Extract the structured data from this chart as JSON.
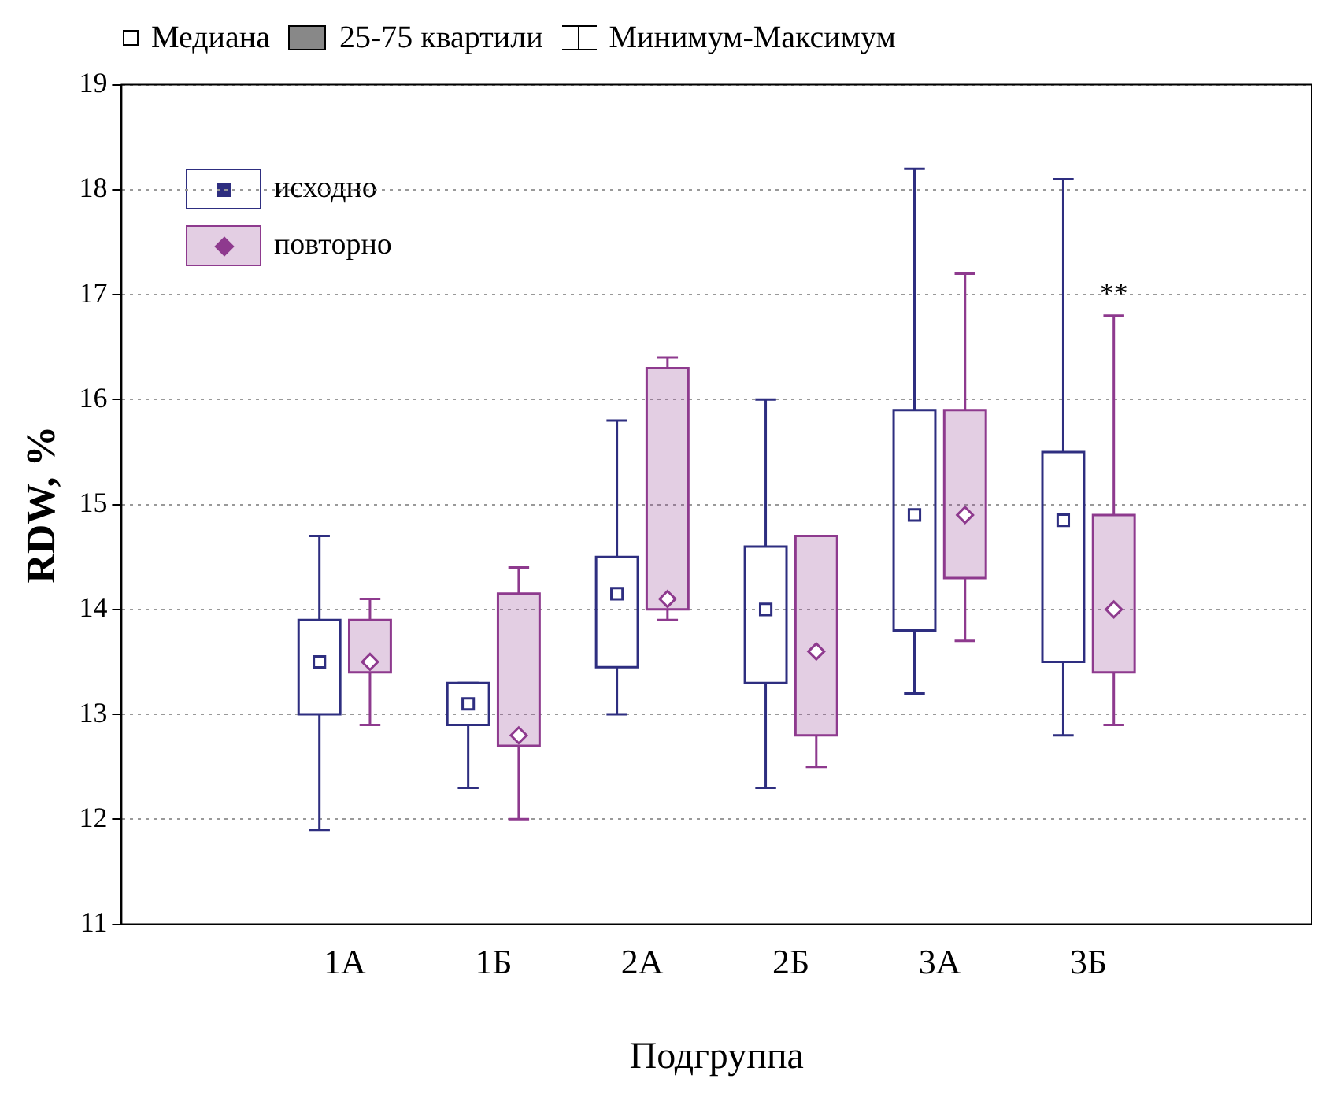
{
  "chart_data": {
    "type": "box",
    "xlabel": "Подгруппа",
    "ylabel": "RDW, %",
    "categories": [
      "1А",
      "1Б",
      "2А",
      "2Б",
      "3А",
      "3Б"
    ],
    "ylim": [
      11,
      19
    ],
    "yticks": [
      11,
      12,
      13,
      14,
      15,
      16,
      17,
      18,
      19
    ],
    "grid": "y",
    "legend": "top left",
    "annotations": [
      "Медиана",
      "25-75 квартили",
      "Минимум-Максимум",
      "**"
    ],
    "series": [
      {
        "name": "исходно",
        "color": "#2e2e80",
        "marker": "square",
        "boxes": [
          {
            "low": 11.9,
            "q1": 13.0,
            "median": 13.5,
            "q3": 13.9,
            "high": 14.7
          },
          {
            "low": 12.3,
            "q1": 12.9,
            "median": 13.1,
            "q3": 13.3,
            "high": 13.3
          },
          {
            "low": 13.0,
            "q1": 13.45,
            "median": 14.15,
            "q3": 14.5,
            "high": 15.8
          },
          {
            "low": 12.3,
            "q1": 13.3,
            "median": 14.0,
            "q3": 14.6,
            "high": 16.0
          },
          {
            "low": 13.2,
            "q1": 13.8,
            "median": 14.9,
            "q3": 15.9,
            "high": 18.2
          },
          {
            "low": 12.8,
            "q1": 13.5,
            "median": 14.85,
            "q3": 15.5,
            "high": 18.1
          }
        ]
      },
      {
        "name": "повторно",
        "color": "#8e3a8e",
        "marker": "diamond",
        "boxes": [
          {
            "low": 12.9,
            "q1": 13.4,
            "median": 13.5,
            "q3": 13.9,
            "high": 14.1
          },
          {
            "low": 12.0,
            "q1": 12.7,
            "median": 12.8,
            "q3": 14.15,
            "high": 14.4
          },
          {
            "low": 13.9,
            "q1": 14.0,
            "median": 14.1,
            "q3": 16.3,
            "high": 16.4
          },
          {
            "low": 12.5,
            "q1": 12.8,
            "median": 13.6,
            "q3": 14.7,
            "high": 14.7
          },
          {
            "low": 13.7,
            "q1": 14.3,
            "median": 14.9,
            "q3": 15.9,
            "high": 17.2
          },
          {
            "low": 12.9,
            "q1": 13.4,
            "median": 14.0,
            "q3": 14.9,
            "high": 16.8
          }
        ]
      }
    ]
  }
}
